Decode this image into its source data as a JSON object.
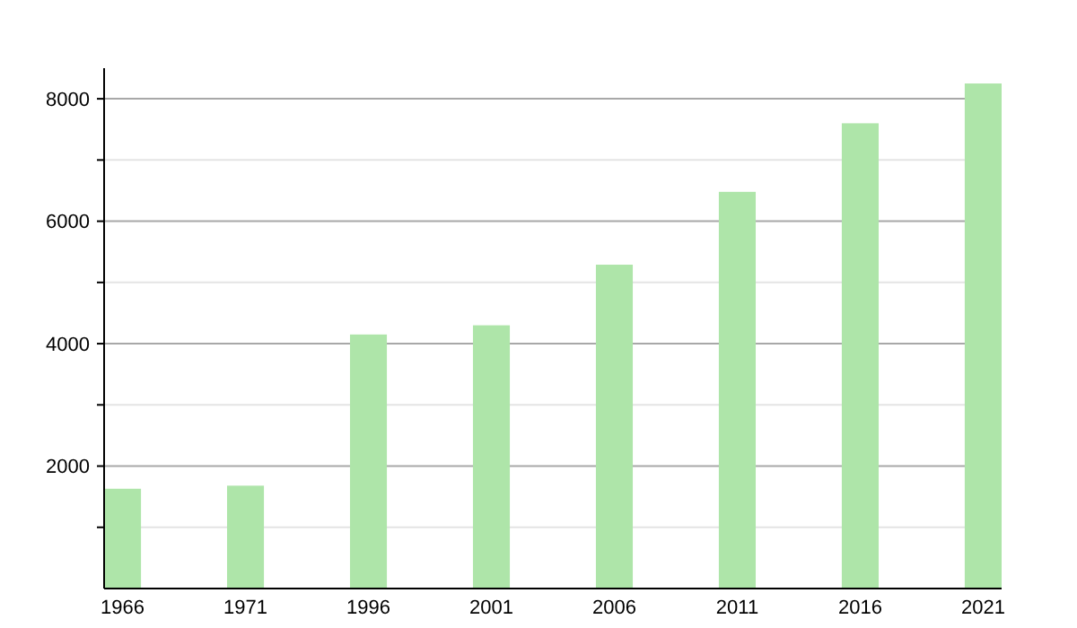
{
  "chart_data": {
    "type": "bar",
    "categories": [
      "1966",
      "1971",
      "1996",
      "2001",
      "2006",
      "2011",
      "2016",
      "2021"
    ],
    "values": [
      1630,
      1680,
      4150,
      4300,
      5290,
      6480,
      7600,
      8250
    ],
    "color": "#aee5a9",
    "ylim": [
      0,
      8500
    ],
    "yticks": [
      {
        "value": 1000,
        "label": null
      },
      2000,
      {
        "value": 3000,
        "label": null
      },
      4000,
      {
        "value": 5000,
        "label": null
      },
      6000,
      {
        "value": 7000,
        "label": null
      },
      8000
    ],
    "grid": true
  }
}
